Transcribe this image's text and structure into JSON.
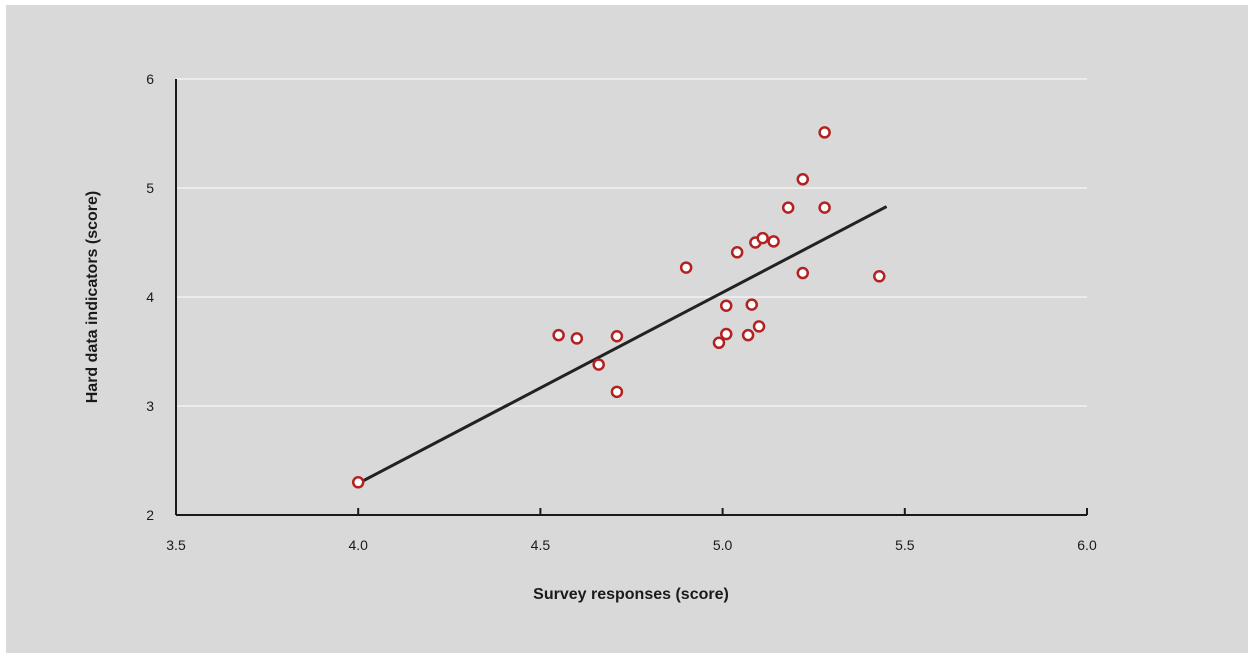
{
  "chart_data": {
    "type": "scatter",
    "title": "",
    "xlabel": "Survey responses (score)",
    "ylabel": "Hard data indicators (score)",
    "xlim": [
      3.5,
      6.0
    ],
    "ylim": [
      2,
      6
    ],
    "x_ticks": [
      "3.5",
      "4.0",
      "4.5",
      "5.0",
      "5.5",
      "6.0"
    ],
    "y_ticks": [
      "2",
      "3",
      "4",
      "5",
      "6"
    ],
    "grid": "horizontal",
    "points": [
      {
        "x": 4.0,
        "y": 2.3
      },
      {
        "x": 4.55,
        "y": 3.65
      },
      {
        "x": 4.6,
        "y": 3.62
      },
      {
        "x": 4.66,
        "y": 3.38
      },
      {
        "x": 4.71,
        "y": 3.64
      },
      {
        "x": 4.71,
        "y": 3.13
      },
      {
        "x": 4.9,
        "y": 4.27
      },
      {
        "x": 4.99,
        "y": 3.58
      },
      {
        "x": 5.01,
        "y": 3.92
      },
      {
        "x": 5.01,
        "y": 3.66
      },
      {
        "x": 5.04,
        "y": 4.41
      },
      {
        "x": 5.07,
        "y": 3.65
      },
      {
        "x": 5.08,
        "y": 3.93
      },
      {
        "x": 5.09,
        "y": 4.5
      },
      {
        "x": 5.1,
        "y": 3.73
      },
      {
        "x": 5.11,
        "y": 4.54
      },
      {
        "x": 5.14,
        "y": 4.51
      },
      {
        "x": 5.18,
        "y": 4.82
      },
      {
        "x": 5.22,
        "y": 5.08
      },
      {
        "x": 5.22,
        "y": 4.22
      },
      {
        "x": 5.28,
        "y": 5.51
      },
      {
        "x": 5.28,
        "y": 4.82
      },
      {
        "x": 5.43,
        "y": 4.19
      }
    ],
    "trendline": [
      {
        "x": 4.0,
        "y": 2.29
      },
      {
        "x": 5.45,
        "y": 4.83
      }
    ],
    "colors": {
      "background": "#d9d9d9",
      "marker_stroke": "#b22222",
      "marker_fill": "#ffffff",
      "trendline": "#222222",
      "gridline": "#ffffff",
      "axis": "#1a1a1a"
    }
  }
}
